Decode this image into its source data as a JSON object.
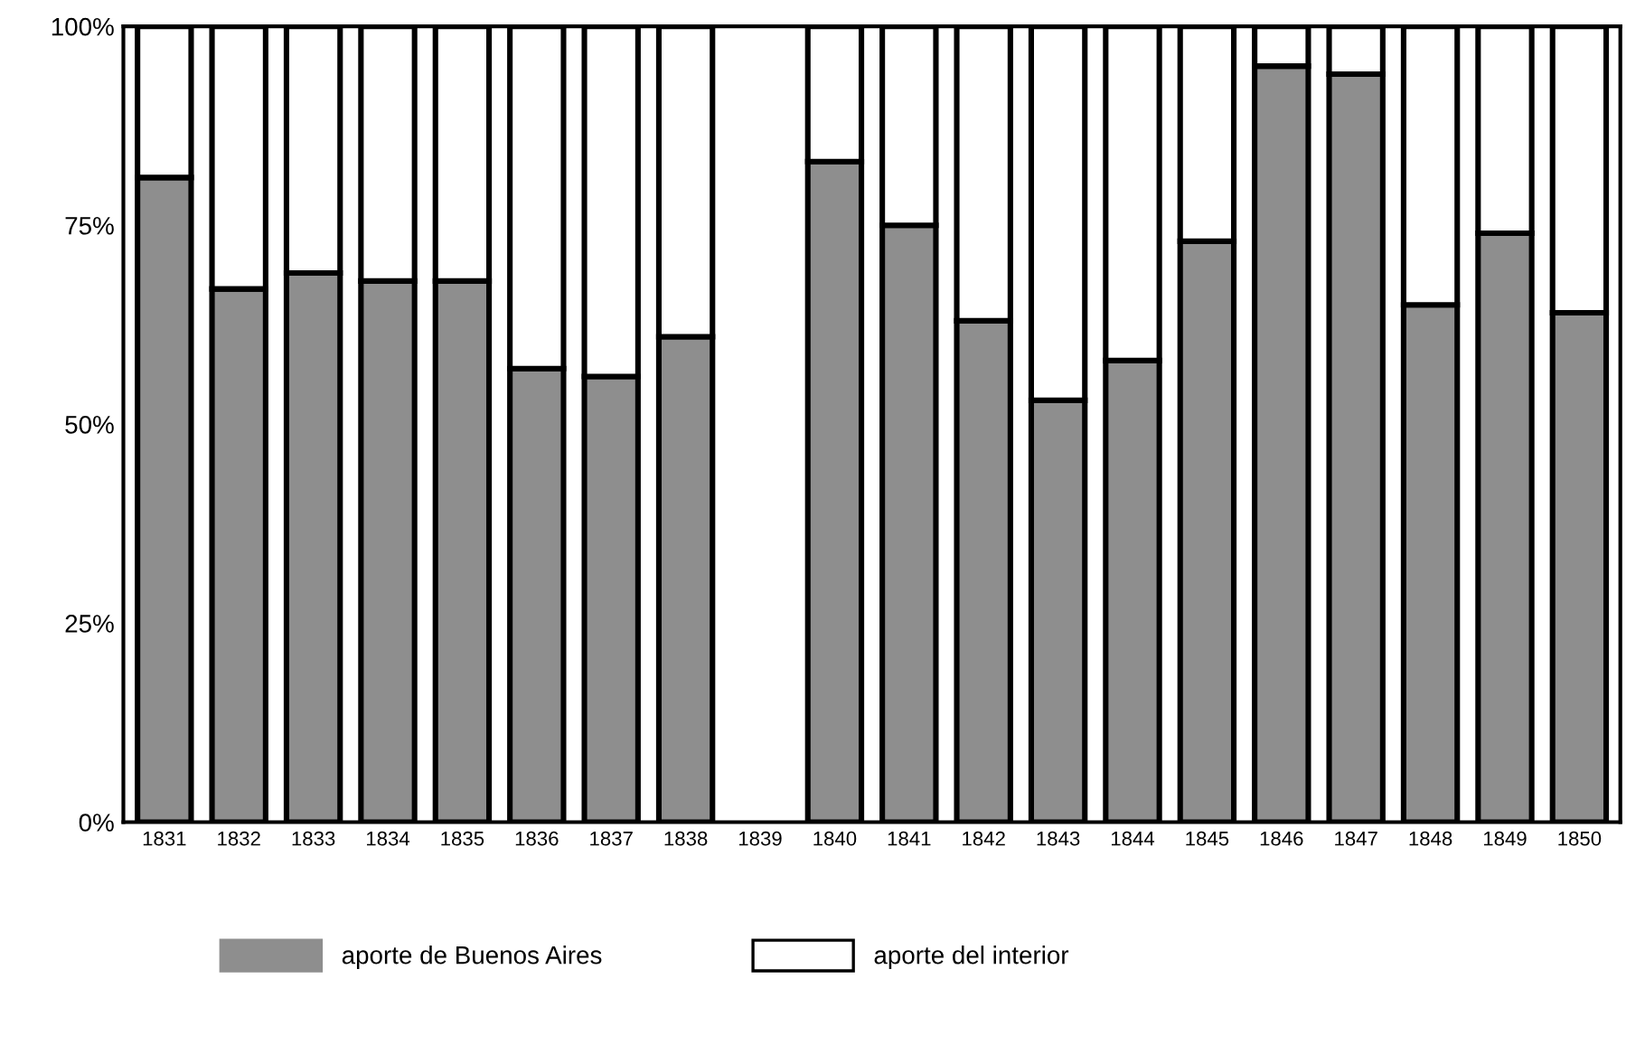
{
  "chart_data": {
    "type": "bar",
    "stacked": true,
    "categories": [
      "1831",
      "1832",
      "1833",
      "1834",
      "1835",
      "1836",
      "1837",
      "1838",
      "1839",
      "1840",
      "1841",
      "1842",
      "1843",
      "1844",
      "1845",
      "1846",
      "1847",
      "1848",
      "1849",
      "1850"
    ],
    "series": [
      {
        "name": "aporte de Buenos Aires",
        "color": "#8e8e8e",
        "values": [
          81,
          67,
          69,
          68,
          68,
          57,
          56,
          61,
          null,
          83,
          75,
          63,
          53,
          58,
          73,
          95,
          94,
          65,
          74,
          64
        ]
      },
      {
        "name": "aporte del interior",
        "color": "#ffffff",
        "values": [
          19,
          33,
          31,
          32,
          32,
          43,
          44,
          39,
          null,
          17,
          25,
          37,
          47,
          42,
          27,
          5,
          6,
          35,
          26,
          36
        ]
      }
    ],
    "ylim": [
      0,
      100
    ],
    "yticks": [
      {
        "value": 0,
        "label": "0%"
      },
      {
        "value": 25,
        "label": "25%"
      },
      {
        "value": 50,
        "label": "50%"
      },
      {
        "value": 75,
        "label": "75%"
      },
      {
        "value": 100,
        "label": "100%"
      }
    ],
    "legend": "bottom",
    "grid": false
  }
}
